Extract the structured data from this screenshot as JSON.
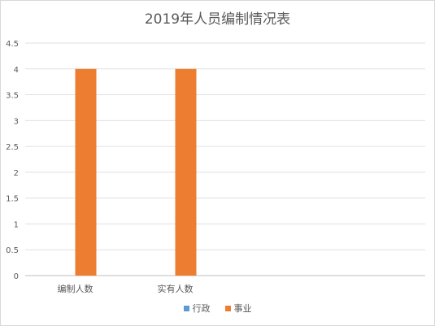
{
  "chart_data": {
    "type": "bar",
    "title": "2019年人员编制情况表",
    "categories": [
      "编制人数",
      "实有人数"
    ],
    "series": [
      {
        "name": "行政",
        "values": [
          0,
          0
        ],
        "color": "#5b9bd5"
      },
      {
        "name": "事业",
        "values": [
          4,
          4
        ],
        "color": "#ed7d31"
      }
    ],
    "ylim": [
      0,
      4.5
    ],
    "yticks": [
      "0",
      "0.5",
      "1",
      "1.5",
      "2",
      "2.5",
      "3",
      "3.5",
      "4",
      "4.5"
    ],
    "grid": true,
    "legend_position": "bottom"
  }
}
